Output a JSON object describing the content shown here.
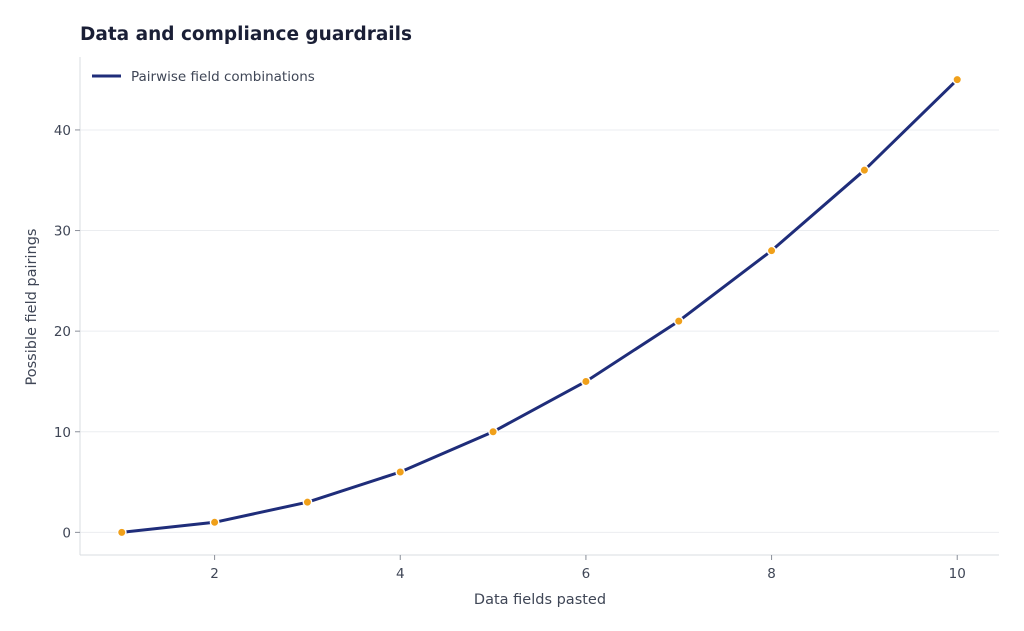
{
  "chart_data": {
    "type": "line",
    "title": "Data and compliance guardrails",
    "xlabel": "Data fields pasted",
    "ylabel": "Possible field pairings",
    "x": [
      1,
      2,
      3,
      4,
      5,
      6,
      7,
      8,
      9,
      10
    ],
    "series": [
      {
        "name": "Pairwise field combinations",
        "values": [
          0,
          1,
          3,
          6,
          10,
          15,
          21,
          28,
          36,
          45
        ],
        "color": "#1f2d7a",
        "marker_color": "#f0a01a"
      }
    ],
    "xlim": [
      0.55,
      10.45
    ],
    "ylim": [
      -2.25,
      47.25
    ],
    "xticks": [
      2,
      4,
      6,
      8,
      10
    ],
    "yticks": [
      0,
      10,
      20,
      30,
      40
    ],
    "grid": "horizontal",
    "legend": "top-left"
  }
}
